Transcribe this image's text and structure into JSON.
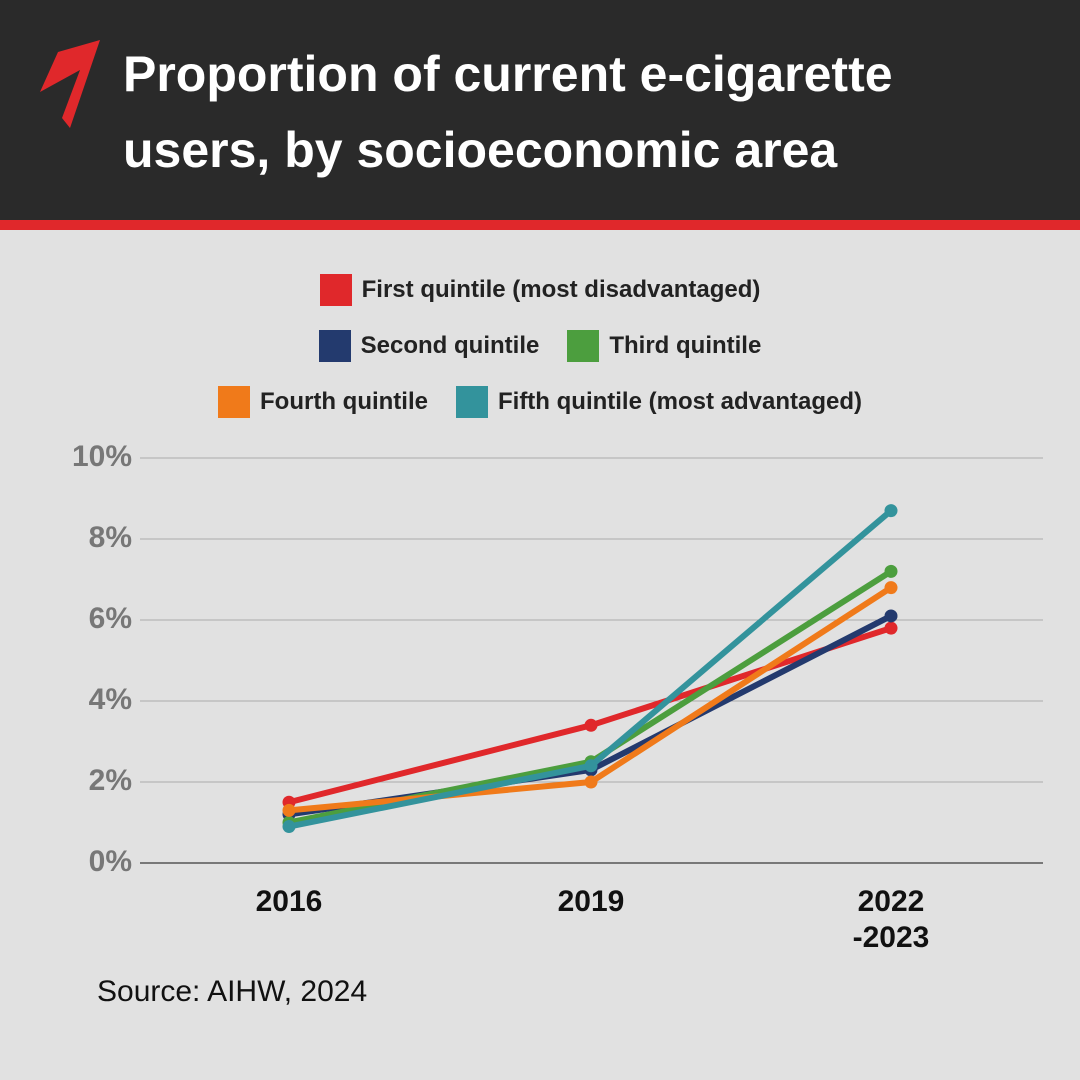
{
  "chart_data": {
    "type": "line",
    "title": "Proportion of current e-cigarette users, by socioeconomic area",
    "source": "Source: AIHW, 2024",
    "categories": [
      "2016",
      "2019",
      "2022\n-2023"
    ],
    "series": [
      {
        "name": "First quintile (most disadvantaged)",
        "color": "#e0282b",
        "values": [
          1.5,
          3.4,
          5.8
        ]
      },
      {
        "name": "Second quintile",
        "color": "#233a6e",
        "values": [
          1.2,
          2.3,
          6.1
        ]
      },
      {
        "name": "Third quintile",
        "color": "#4c9e3e",
        "values": [
          1.0,
          2.5,
          7.2
        ]
      },
      {
        "name": "Fourth quintile",
        "color": "#f07a1a",
        "values": [
          1.3,
          2.0,
          6.8
        ]
      },
      {
        "name": "Fifth quintile (most advantaged)",
        "color": "#33939c",
        "values": [
          0.9,
          2.4,
          8.7
        ]
      }
    ],
    "ylim": [
      0,
      10
    ],
    "yticks": [
      {
        "value": 0,
        "label": "0%"
      },
      {
        "value": 2,
        "label": "2%"
      },
      {
        "value": 4,
        "label": "4%"
      },
      {
        "value": 6,
        "label": "6%"
      },
      {
        "value": 8,
        "label": "8%"
      },
      {
        "value": 10,
        "label": "10%"
      }
    ],
    "grid": true
  }
}
